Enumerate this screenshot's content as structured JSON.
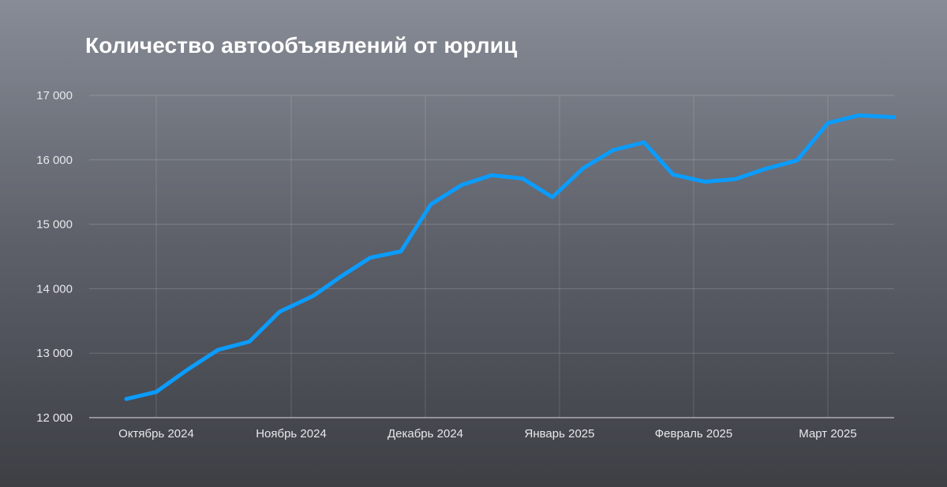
{
  "chart_data": {
    "type": "line",
    "title": "Количество автообъявлений от юрлиц",
    "xlabel": "",
    "ylabel": "",
    "ylim": [
      12000,
      17000
    ],
    "yticks": [
      12000,
      13000,
      14000,
      15000,
      16000,
      17000
    ],
    "ytick_labels": [
      "12 000",
      "13 000",
      "14 000",
      "15 000",
      "16 000",
      "17 000"
    ],
    "xtick_labels": [
      "Октябрь 2024",
      "Ноябрь 2024",
      "Декабрь 2024",
      "Январь 2025",
      "Февраль 2025",
      "Март 2025"
    ],
    "grid": true,
    "line_color": "#0a9cff",
    "series": [
      {
        "values": [
          12290,
          12400,
          12740,
          13050,
          13180,
          13640,
          13890,
          14190,
          14480,
          14580,
          15310,
          15610,
          15760,
          15710,
          15420,
          15870,
          16150,
          16270,
          15770,
          15660,
          15700,
          15860,
          15990,
          16570,
          16690,
          16660
        ]
      }
    ]
  }
}
